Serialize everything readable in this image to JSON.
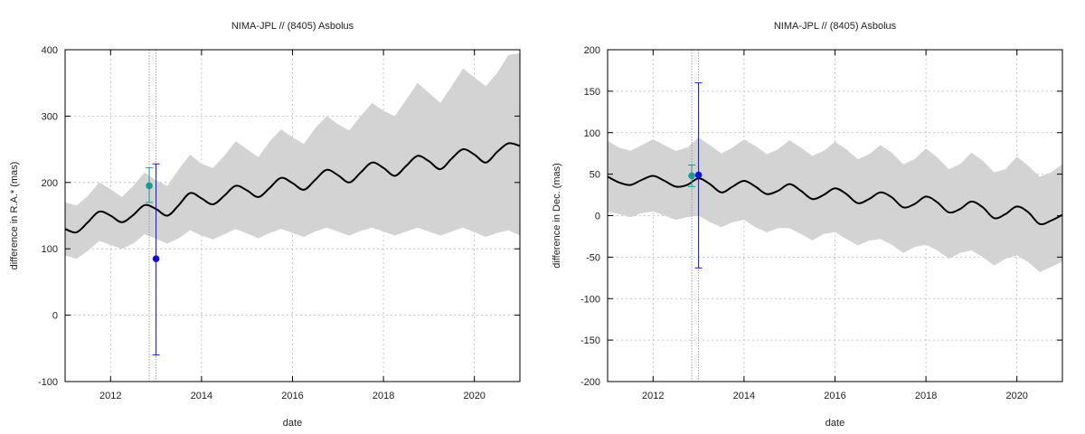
{
  "colors": {
    "band": "#d3d3d3",
    "model": "#000000",
    "obs_teal": "#1a9a90",
    "obs_blue": "#1010e0",
    "frame": "#000000",
    "grid": "#b8b8b8",
    "epoch_line": "#888888"
  },
  "chart_data": [
    {
      "type": "line",
      "title": "NIMA-JPL // (8405) Asbolus",
      "xlabel": "date",
      "ylabel": "difference in R.A.* (mas)",
      "xlim": [
        2011.0,
        2021.0
      ],
      "ylim": [
        -100,
        400
      ],
      "xticks": [
        2012,
        2014,
        2016,
        2018,
        2020
      ],
      "xtick_labels": [
        "2012",
        "2014",
        "2016",
        "2018",
        "2020"
      ],
      "yticks": [
        -100,
        0,
        100,
        200,
        300,
        400
      ],
      "ytick_labels": [
        "-100",
        "0",
        "100",
        "200",
        "300",
        "400"
      ],
      "grid": true,
      "legend": "none",
      "model": {
        "x": [
          2011.0,
          2011.25,
          2011.5,
          2011.75,
          2012.0,
          2012.25,
          2012.5,
          2012.75,
          2013.0,
          2013.25,
          2013.5,
          2013.75,
          2014.0,
          2014.25,
          2014.5,
          2014.75,
          2015.0,
          2015.25,
          2015.5,
          2015.75,
          2016.0,
          2016.25,
          2016.5,
          2016.75,
          2017.0,
          2017.25,
          2017.5,
          2017.75,
          2018.0,
          2018.25,
          2018.5,
          2018.75,
          2019.0,
          2019.25,
          2019.5,
          2019.75,
          2020.0,
          2020.25,
          2020.5,
          2020.75,
          2021.0
        ],
        "y": [
          130,
          125,
          140,
          156,
          150,
          140,
          151,
          166,
          160,
          150,
          166,
          184,
          176,
          167,
          180,
          195,
          188,
          178,
          192,
          207,
          199,
          189,
          204,
          219,
          211,
          200,
          215,
          230,
          222,
          210,
          225,
          240,
          232,
          220,
          236,
          250,
          242,
          230,
          246,
          259,
          255
        ]
      },
      "band_upper": {
        "x": [
          2011.0,
          2011.25,
          2011.5,
          2011.75,
          2012.0,
          2012.25,
          2012.5,
          2012.75,
          2013.0,
          2013.25,
          2013.5,
          2013.75,
          2014.0,
          2014.25,
          2014.5,
          2014.75,
          2015.0,
          2015.25,
          2015.5,
          2015.75,
          2016.0,
          2016.25,
          2016.5,
          2016.75,
          2017.0,
          2017.25,
          2017.5,
          2017.75,
          2018.0,
          2018.25,
          2018.5,
          2018.75,
          2019.0,
          2019.25,
          2019.5,
          2019.75,
          2020.0,
          2020.25,
          2020.5,
          2020.75,
          2021.0
        ],
        "y": [
          170,
          165,
          180,
          200,
          190,
          178,
          195,
          215,
          203,
          195,
          220,
          242,
          228,
          222,
          240,
          262,
          250,
          238,
          262,
          280,
          268,
          258,
          282,
          300,
          288,
          278,
          300,
          320,
          308,
          300,
          325,
          350,
          335,
          320,
          345,
          372,
          358,
          345,
          365,
          392,
          395
        ]
      },
      "band_lower": {
        "x": [
          2011.0,
          2011.25,
          2011.5,
          2011.75,
          2012.0,
          2012.25,
          2012.5,
          2012.75,
          2013.0,
          2013.25,
          2013.5,
          2013.75,
          2014.0,
          2014.25,
          2014.5,
          2014.75,
          2015.0,
          2015.25,
          2015.5,
          2015.75,
          2016.0,
          2016.25,
          2016.5,
          2016.75,
          2017.0,
          2017.25,
          2017.5,
          2017.75,
          2018.0,
          2018.25,
          2018.5,
          2018.75,
          2019.0,
          2019.25,
          2019.5,
          2019.75,
          2020.0,
          2020.25,
          2020.5,
          2020.75,
          2021.0
        ],
        "y": [
          90,
          85,
          97,
          112,
          106,
          100,
          108,
          122,
          115,
          108,
          116,
          128,
          120,
          114,
          122,
          130,
          123,
          116,
          124,
          130,
          124,
          118,
          126,
          132,
          126,
          120,
          127,
          132,
          126,
          120,
          126,
          132,
          126,
          120,
          126,
          132,
          125,
          118,
          124,
          128,
          120
        ]
      },
      "epoch_lines": [
        2012.85,
        2013.0
      ],
      "points": [
        {
          "x": 2012.85,
          "y": 195,
          "yerr_low": 170,
          "yerr_high": 222,
          "color": "#1a9a90"
        },
        {
          "x": 2013.0,
          "y": 85,
          "yerr_low": -60,
          "yerr_high": 228,
          "color": "#1010e0"
        }
      ]
    },
    {
      "type": "line",
      "title": "NIMA-JPL // (8405) Asbolus",
      "xlabel": "date",
      "ylabel": "difference in Dec. (mas)",
      "xlim": [
        2011.0,
        2021.0
      ],
      "ylim": [
        -200,
        200
      ],
      "xticks": [
        2012,
        2014,
        2016,
        2018,
        2020
      ],
      "xtick_labels": [
        "2012",
        "2014",
        "2016",
        "2018",
        "2020"
      ],
      "yticks": [
        -200,
        -150,
        -100,
        -50,
        0,
        50,
        100,
        150,
        200
      ],
      "ytick_labels": [
        "-200",
        "-150",
        "-100",
        "-50",
        "0",
        "50",
        "100",
        "150",
        "200"
      ],
      "grid": true,
      "legend": "none",
      "model": {
        "x": [
          2011.0,
          2011.25,
          2011.5,
          2011.75,
          2012.0,
          2012.25,
          2012.5,
          2012.75,
          2013.0,
          2013.25,
          2013.5,
          2013.75,
          2014.0,
          2014.25,
          2014.5,
          2014.75,
          2015.0,
          2015.25,
          2015.5,
          2015.75,
          2016.0,
          2016.25,
          2016.5,
          2016.75,
          2017.0,
          2017.25,
          2017.5,
          2017.75,
          2018.0,
          2018.25,
          2018.5,
          2018.75,
          2019.0,
          2019.25,
          2019.5,
          2019.75,
          2020.0,
          2020.25,
          2020.5,
          2020.75,
          2021.0
        ],
        "y": [
          47,
          40,
          37,
          43,
          48,
          42,
          35,
          37,
          45,
          38,
          28,
          35,
          42,
          35,
          26,
          30,
          38,
          30,
          20,
          25,
          33,
          26,
          15,
          20,
          28,
          22,
          10,
          14,
          23,
          16,
          4,
          8,
          17,
          10,
          -3,
          2,
          11,
          4,
          -10,
          -6,
          1
        ]
      },
      "band_upper": {
        "x": [
          2011.0,
          2011.25,
          2011.5,
          2011.75,
          2012.0,
          2012.25,
          2012.5,
          2012.75,
          2013.0,
          2013.25,
          2013.5,
          2013.75,
          2014.0,
          2014.25,
          2014.5,
          2014.75,
          2015.0,
          2015.25,
          2015.5,
          2015.75,
          2016.0,
          2016.25,
          2016.5,
          2016.75,
          2017.0,
          2017.25,
          2017.5,
          2017.75,
          2018.0,
          2018.25,
          2018.5,
          2018.75,
          2019.0,
          2019.25,
          2019.5,
          2019.75,
          2020.0,
          2020.25,
          2020.5,
          2020.75,
          2021.0
        ],
        "y": [
          90,
          82,
          78,
          85,
          92,
          85,
          78,
          82,
          94,
          85,
          75,
          82,
          92,
          84,
          74,
          80,
          91,
          82,
          72,
          78,
          89,
          80,
          68,
          74,
          85,
          76,
          62,
          68,
          81,
          70,
          56,
          62,
          76,
          66,
          52,
          56,
          71,
          60,
          47,
          52,
          62
        ]
      },
      "band_lower": {
        "x": [
          2011.0,
          2011.25,
          2011.5,
          2011.75,
          2012.0,
          2012.25,
          2012.5,
          2012.75,
          2013.0,
          2013.25,
          2013.5,
          2013.75,
          2014.0,
          2014.25,
          2014.5,
          2014.75,
          2015.0,
          2015.25,
          2015.5,
          2015.75,
          2016.0,
          2016.25,
          2016.5,
          2016.75,
          2017.0,
          2017.25,
          2017.5,
          2017.75,
          2018.0,
          2018.25,
          2018.5,
          2018.75,
          2019.0,
          2019.25,
          2019.5,
          2019.75,
          2020.0,
          2020.25,
          2020.5,
          2020.75,
          2021.0
        ],
        "y": [
          5,
          2,
          -2,
          3,
          5,
          0,
          -5,
          -2,
          0,
          -8,
          -14,
          -8,
          -5,
          -14,
          -20,
          -15,
          -15,
          -22,
          -30,
          -22,
          -20,
          -28,
          -36,
          -30,
          -28,
          -35,
          -45,
          -38,
          -35,
          -42,
          -52,
          -45,
          -42,
          -50,
          -60,
          -52,
          -48,
          -56,
          -68,
          -62,
          -55
        ]
      },
      "epoch_lines": [
        2012.85,
        2013.0
      ],
      "points": [
        {
          "x": 2012.85,
          "y": 48,
          "yerr_low": 35,
          "yerr_high": 61,
          "color": "#1a9a90"
        },
        {
          "x": 2013.0,
          "y": 49,
          "yerr_low": -63,
          "yerr_high": 160,
          "color": "#1010e0"
        }
      ]
    }
  ]
}
